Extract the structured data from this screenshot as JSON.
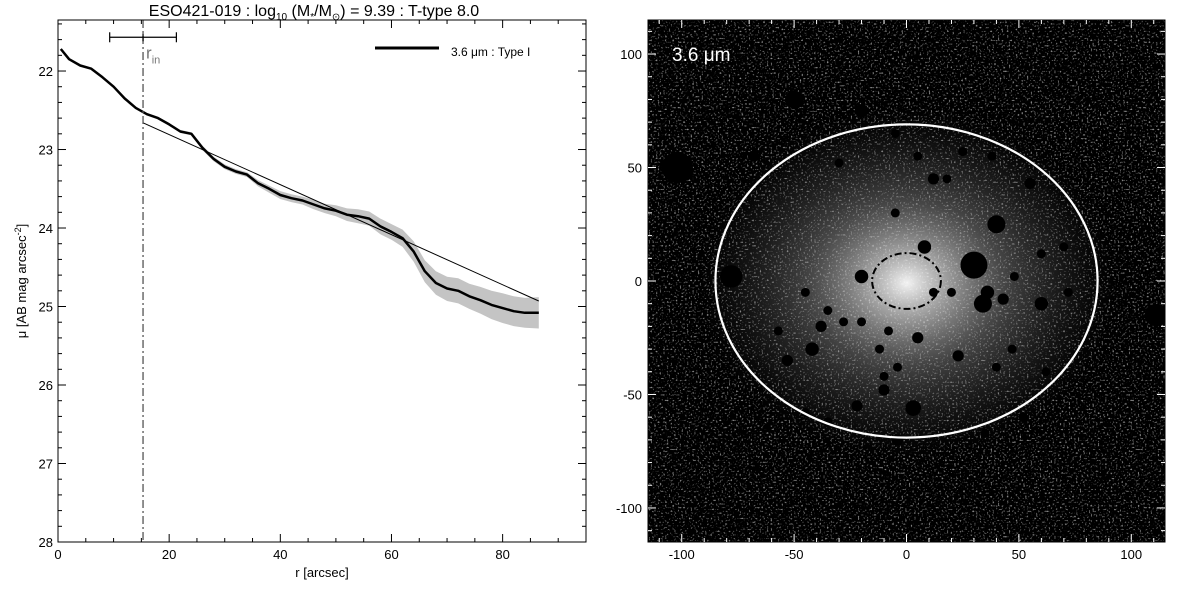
{
  "chart_data": [
    {
      "type": "line",
      "title_prefix": "ESO421-019 : log",
      "title_sub": "10",
      "title_mid": " (M",
      "title_star": "*",
      "title_slash": "/M",
      "title_sun": "⊙",
      "title_suffix": ") = 9.39 : T-type 8.0",
      "xlabel": "r [arcsec]",
      "ylabel_main": "μ [AB mag arcsec",
      "ylabel_sup": "-2",
      "ylabel_close": "]",
      "xlim": [
        0,
        95
      ],
      "ylim": [
        21.35,
        28
      ],
      "y_inverted": true,
      "x_ticks": [
        0,
        20,
        40,
        60,
        80
      ],
      "y_ticks": [
        22,
        23,
        24,
        25,
        26,
        27,
        28
      ],
      "legend": {
        "label": "3.6 μm : Type I",
        "placement": "top-right"
      },
      "r_in": {
        "x": 15.3,
        "label_main": "r",
        "label_sub": "in",
        "error_bar": [
          9.3,
          21.3
        ],
        "error_bar_y": 21.57
      },
      "series": [
        {
          "name": "3.6 μm : Type I",
          "x": [
            0.5,
            2,
            4,
            6,
            8,
            10,
            12,
            14,
            16,
            18,
            20,
            22,
            24,
            26,
            28,
            30,
            32,
            34,
            36,
            38,
            40,
            42,
            44,
            46,
            48,
            50,
            52,
            54,
            56,
            58,
            60,
            62,
            64,
            66,
            68,
            70,
            72,
            74,
            76,
            78,
            80,
            82,
            84,
            86.5
          ],
          "y": [
            21.72,
            21.85,
            21.93,
            21.97,
            22.08,
            22.2,
            22.35,
            22.47,
            22.55,
            22.6,
            22.68,
            22.77,
            22.8,
            22.98,
            23.12,
            23.22,
            23.28,
            23.32,
            23.43,
            23.5,
            23.58,
            23.62,
            23.65,
            23.7,
            23.75,
            23.78,
            23.83,
            23.85,
            23.88,
            23.98,
            24.05,
            24.13,
            24.3,
            24.55,
            24.7,
            24.77,
            24.8,
            24.87,
            24.92,
            24.98,
            25.02,
            25.06,
            25.08,
            25.08
          ],
          "band_lower": [
            21.72,
            21.85,
            21.93,
            21.97,
            22.08,
            22.2,
            22.35,
            22.47,
            22.55,
            22.6,
            22.67,
            22.75,
            22.78,
            22.95,
            23.09,
            23.19,
            23.25,
            23.29,
            23.39,
            23.46,
            23.53,
            23.57,
            23.6,
            23.64,
            23.69,
            23.71,
            23.75,
            23.76,
            23.79,
            23.88,
            23.95,
            24.02,
            24.17,
            24.41,
            24.55,
            24.62,
            24.64,
            24.71,
            24.75,
            24.8,
            24.83,
            24.87,
            24.89,
            24.88
          ],
          "band_upper": [
            21.72,
            21.85,
            21.93,
            21.97,
            22.08,
            22.2,
            22.35,
            22.47,
            22.55,
            22.6,
            22.69,
            22.79,
            22.82,
            23.01,
            23.15,
            23.25,
            23.31,
            23.35,
            23.47,
            23.55,
            23.63,
            23.67,
            23.7,
            23.76,
            23.81,
            23.85,
            23.91,
            23.94,
            23.97,
            24.08,
            24.15,
            24.24,
            24.43,
            24.69,
            24.85,
            24.93,
            24.96,
            25.03,
            25.09,
            25.16,
            25.21,
            25.25,
            25.27,
            25.28
          ]
        }
      ],
      "fit_line": {
        "x": [
          15.3,
          86.5
        ],
        "y": [
          22.66,
          24.93
        ]
      }
    },
    {
      "type": "heatmap",
      "label_text": "3.6 μm",
      "xlim": [
        -115,
        115
      ],
      "ylim": [
        -115,
        115
      ],
      "x_ticks": [
        -100,
        -50,
        0,
        50,
        100
      ],
      "y_ticks": [
        -100,
        -50,
        0,
        50,
        100
      ],
      "outer_ellipse": {
        "cx": 0,
        "cy": 0,
        "rx": 85,
        "ry": 69,
        "color": "#ffffff"
      },
      "inner_ellipse": {
        "cx": 0,
        "cy": 0,
        "rx": 15.3,
        "ry": 12.3,
        "color": "#000000"
      }
    }
  ]
}
